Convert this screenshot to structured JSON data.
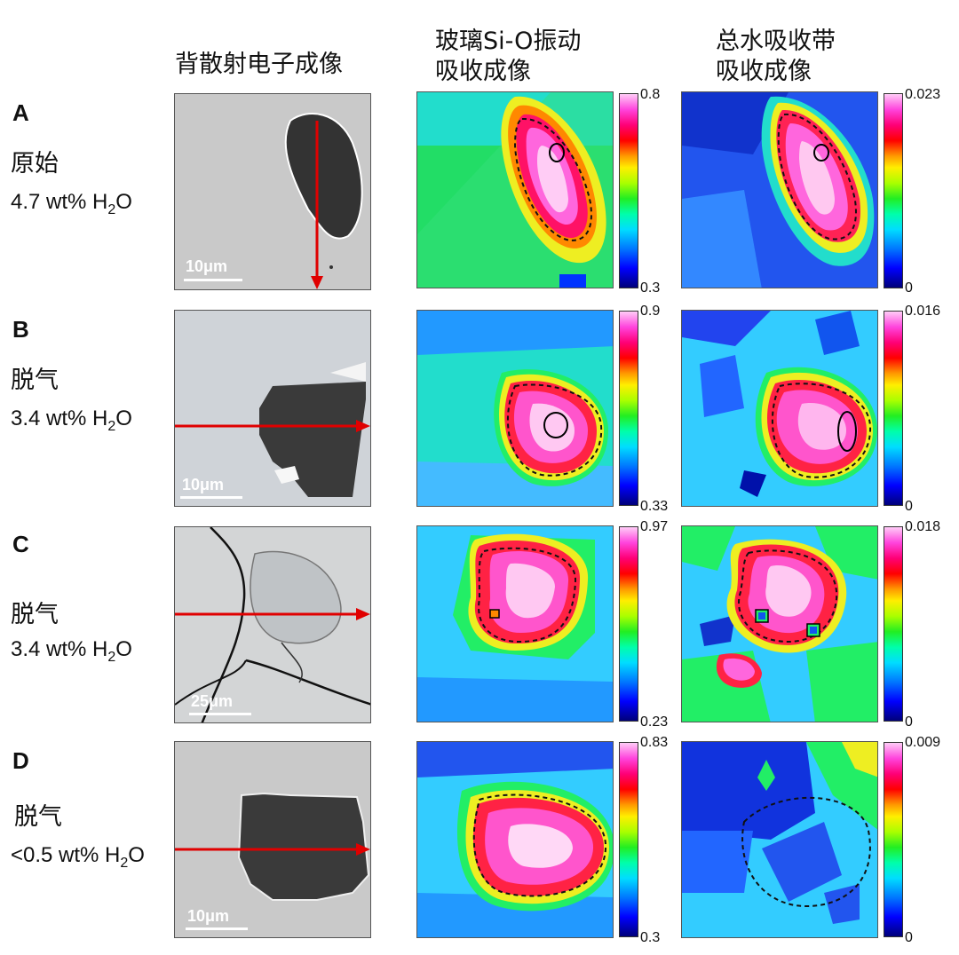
{
  "headers": {
    "bse": "背散射电子成像",
    "glass_line1": "玻璃Si-O振动",
    "glass_line2": "吸收成像",
    "water_line1": "总水吸收带",
    "water_line2": "吸收成像"
  },
  "rows": [
    {
      "letter": "A",
      "name": "原始",
      "water": "4.7 wt% H",
      "water_sub": "2",
      "water_tail": "O",
      "scale": "10μm",
      "glass_max": "0.8",
      "glass_min": "0.3",
      "water_max": "0.023",
      "water_min": "0"
    },
    {
      "letter": "B",
      "name": "脱气",
      "water": "3.4 wt% H",
      "water_sub": "2",
      "water_tail": "O",
      "scale": "10μm",
      "glass_max": "0.9",
      "glass_min": "0.33",
      "water_max": "0.016",
      "water_min": "0"
    },
    {
      "letter": "C",
      "name": "脱气",
      "water": "3.4 wt% H",
      "water_sub": "2",
      "water_tail": "O",
      "scale": "25μm",
      "glass_max": "0.97",
      "glass_min": "0.23",
      "water_max": "0.018",
      "water_min": "0"
    },
    {
      "letter": "D",
      "name": "脱气",
      "water": "<0.5 wt% H",
      "water_sub": "2",
      "water_tail": "O",
      "scale": "10μm",
      "glass_max": "0.83",
      "glass_min": "0.3",
      "water_max": "0.009",
      "water_min": "0"
    }
  ],
  "colors": {
    "arrow": "#e00000",
    "bse_bg": "#c9c9c9",
    "inclusion": "#3a3a3a"
  }
}
